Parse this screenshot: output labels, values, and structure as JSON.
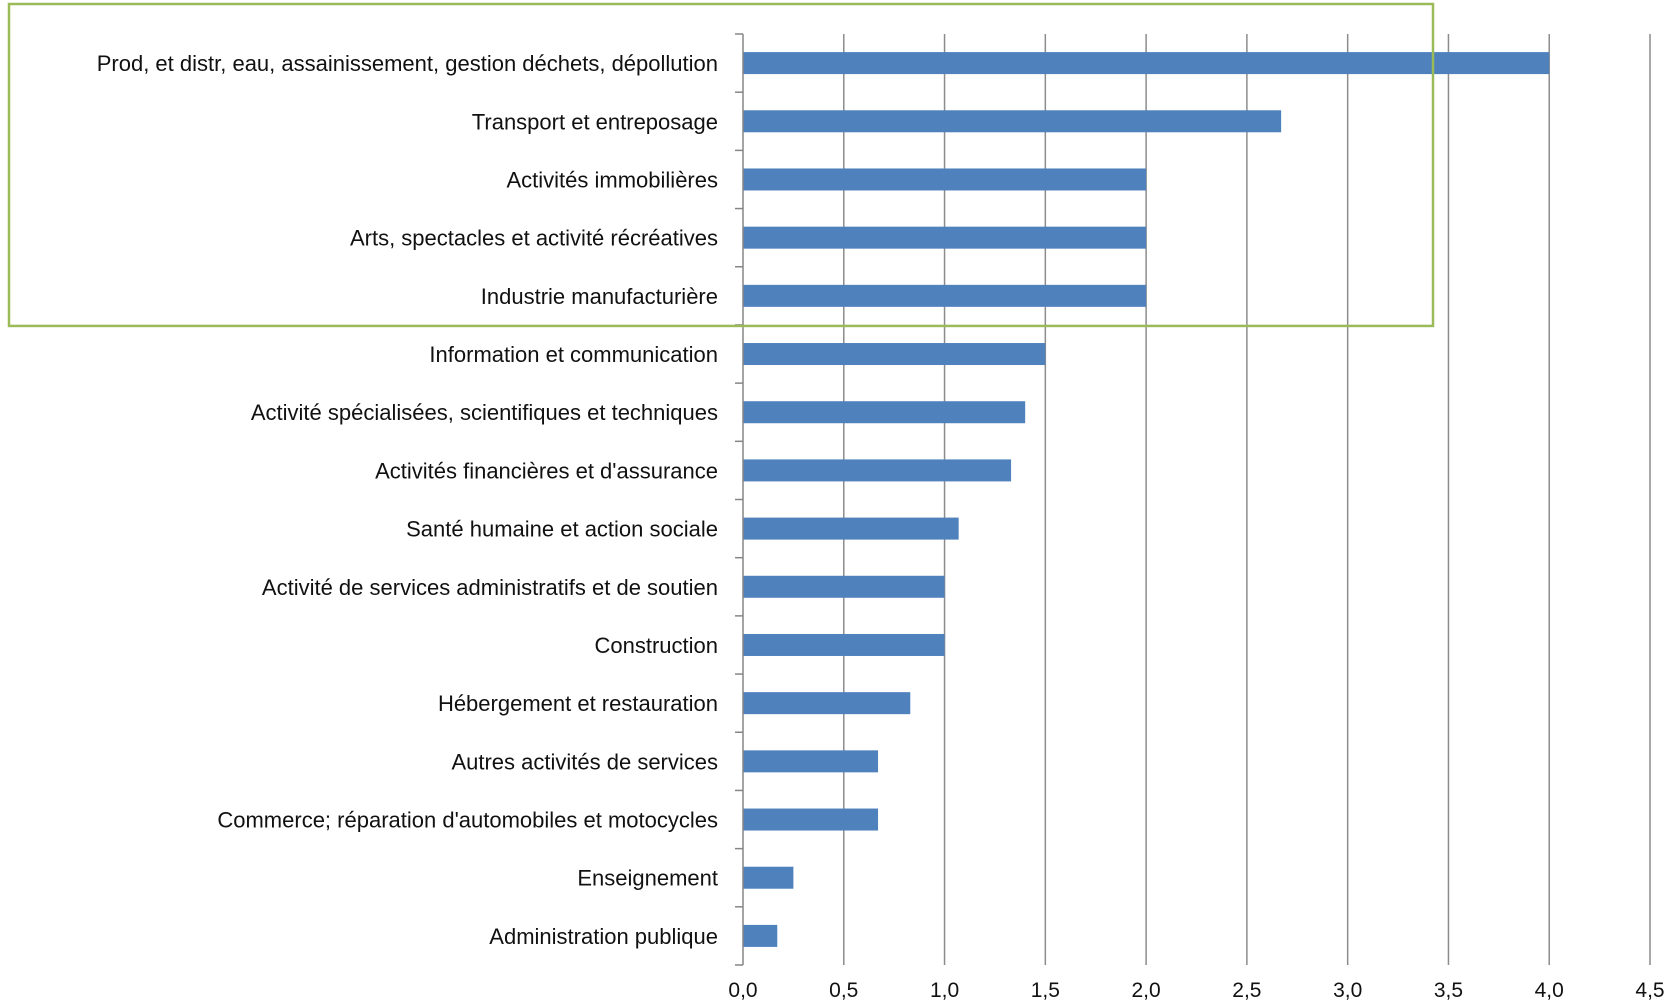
{
  "chart_data": {
    "type": "bar",
    "orientation": "horizontal",
    "categories": [
      "Prod, et distr, eau, assainissement, gestion déchets, dépollution",
      "Transport et entreposage",
      "Activités immobilières",
      "Arts, spectacles et activité récréatives",
      "Industrie manufacturière",
      "Information et communication",
      "Activité spécialisées, scientifiques et techniques",
      "Activités financières  et d'assurance",
      "Santé humaine et action sociale",
      "Activité de services administratifs et de soutien",
      "Construction",
      "Hébergement et restauration",
      "Autres activités de services",
      "Commerce; réparation d'automobiles et motocycles",
      "Enseignement",
      "Administration publique"
    ],
    "values": [
      4.0,
      2.67,
      2.0,
      2.0,
      2.0,
      1.5,
      1.4,
      1.33,
      1.07,
      1.0,
      1.0,
      0.83,
      0.67,
      0.67,
      0.25,
      0.17
    ],
    "xlim": [
      0,
      4.5
    ],
    "x_ticks": [
      "0,0",
      "0,5",
      "1,0",
      "1,5",
      "2,0",
      "2,5",
      "3,0",
      "3,5",
      "4,0",
      "4,5"
    ],
    "grid": "vertical gridlines",
    "legend": "none",
    "colors": {
      "bar": "#4f81bd",
      "grid": "#8c8c8c",
      "axis": "#868686",
      "highlight_box": "#9bbb59"
    },
    "highlight": {
      "category_count": 5
    }
  }
}
